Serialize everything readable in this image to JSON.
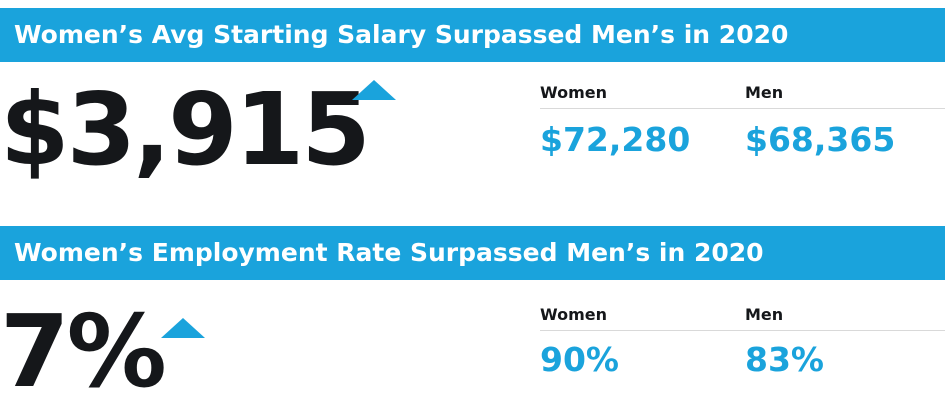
{
  "colors": {
    "accent": "#1aa3dc",
    "dark": "#15171a"
  },
  "salary": {
    "title": "Women’s Avg Starting Salary Surpassed Men’s in 2020",
    "big_value": "$3,915",
    "indicator_icon": "up-triangle-icon",
    "women_label": "Women",
    "men_label": "Men",
    "women_value": "$72,280",
    "men_value": "$68,365"
  },
  "employment": {
    "title": "Women’s Employment Rate Surpassed Men’s in 2020",
    "big_value": "7%",
    "indicator_icon": "up-triangle-icon",
    "women_label": "Women",
    "men_label": "Men",
    "women_value": "90%",
    "men_value": "83%"
  }
}
